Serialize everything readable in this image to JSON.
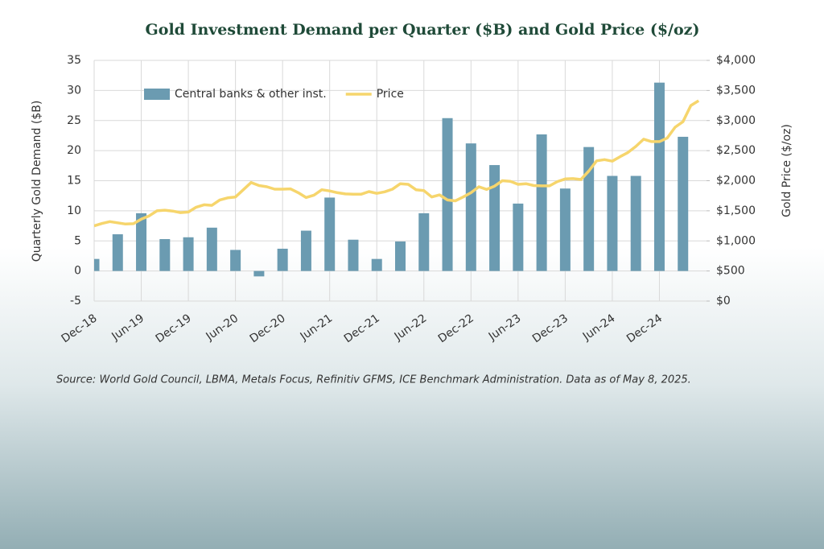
{
  "chart_data": {
    "type": "bar_line",
    "title": "Gold Investment Demand per Quarter ($B) and Gold Price ($/oz)",
    "ylabel": "Quarterly Gold Demand ($B)",
    "y2label": "Gold Price ($/oz)",
    "source": "Source: World Gold Council, LBMA, Metals Focus, Refinitiv GFMS, ICE Benchmark Administration.  Data as of May 8, 2025.",
    "categories": [
      "Dec-18",
      null,
      "Jun-19",
      null,
      "Dec-19",
      null,
      "Jun-20",
      null,
      "Dec-20",
      null,
      "Jun-21",
      null,
      "Dec-21",
      null,
      "Jun-22",
      null,
      "Dec-22",
      null,
      "Jun-23",
      null,
      "Dec-23",
      null,
      "Jun-24",
      null,
      "Dec-24",
      null
    ],
    "series": [
      {
        "name": "Central banks & other inst.",
        "color": "#6b9bb1",
        "values": [
          2.0,
          6.1,
          9.6,
          5.3,
          5.6,
          7.2,
          3.5,
          -0.9,
          3.7,
          6.7,
          12.2,
          5.2,
          2.0,
          4.9,
          9.6,
          25.4,
          21.2,
          17.6,
          11.2,
          22.7,
          13.7,
          20.6,
          15.8,
          15.8,
          31.3,
          22.3
        ]
      },
      {
        "name": "Price",
        "color": "#f6d56c",
        "axis": "y2",
        "x": [
          "Dec-18",
          "Jan-19",
          "Feb-19",
          "Mar-19",
          "Apr-19",
          "May-19",
          "Jun-19",
          "Jul-19",
          "Aug-19",
          "Sep-19",
          "Oct-19",
          "Nov-19",
          "Dec-19",
          "Jan-20",
          "Feb-20",
          "Mar-20",
          "Apr-20",
          "May-20",
          "Jun-20",
          "Jul-20",
          "Aug-20",
          "Sep-20",
          "Oct-20",
          "Nov-20",
          "Dec-20",
          "Jan-21",
          "Feb-21",
          "Mar-21",
          "Apr-21",
          "May-21",
          "Jun-21",
          "Jul-21",
          "Aug-21",
          "Sep-21",
          "Oct-21",
          "Nov-21",
          "Dec-21",
          "Jan-22",
          "Feb-22",
          "Mar-22",
          "Apr-22",
          "May-22",
          "Jun-22",
          "Jul-22",
          "Aug-22",
          "Sep-22",
          "Oct-22",
          "Nov-22",
          "Dec-22",
          "Jan-23",
          "Feb-23",
          "Mar-23",
          "Apr-23",
          "May-23",
          "Jun-23",
          "Jul-23",
          "Aug-23",
          "Sep-23",
          "Oct-23",
          "Nov-23",
          "Dec-23",
          "Jan-24",
          "Feb-24",
          "Mar-24",
          "Apr-24",
          "May-24",
          "Jun-24",
          "Jul-24",
          "Aug-24",
          "Sep-24",
          "Oct-24",
          "Nov-24",
          "Dec-24",
          "Jan-25",
          "Feb-25",
          "Mar-25",
          "Apr-25",
          "May-25"
        ],
        "values": [
          1250,
          1290,
          1320,
          1300,
          1280,
          1285,
          1360,
          1415,
          1500,
          1510,
          1495,
          1470,
          1480,
          1560,
          1600,
          1590,
          1680,
          1715,
          1730,
          1850,
          1970,
          1920,
          1900,
          1860,
          1860,
          1865,
          1800,
          1720,
          1760,
          1850,
          1830,
          1800,
          1780,
          1775,
          1775,
          1820,
          1790,
          1815,
          1860,
          1950,
          1940,
          1850,
          1835,
          1730,
          1765,
          1680,
          1665,
          1730,
          1800,
          1900,
          1855,
          1910,
          2000,
          1990,
          1940,
          1950,
          1920,
          1915,
          1915,
          1985,
          2030,
          2035,
          2020,
          2160,
          2330,
          2350,
          2325,
          2400,
          2470,
          2570,
          2690,
          2650,
          2650,
          2710,
          2890,
          2980,
          3250,
          3330
        ]
      }
    ],
    "ylim": [
      -5,
      35
    ],
    "yticks": [
      -5,
      0,
      5,
      10,
      15,
      20,
      25,
      30,
      35
    ],
    "y2lim": [
      0,
      4000
    ],
    "y2ticks": [
      {
        "value": 0,
        "label": "$0"
      },
      {
        "value": 500,
        "label": "$500"
      },
      {
        "value": 1000,
        "label": "$1,000"
      },
      {
        "value": 1500,
        "label": "$1,500"
      },
      {
        "value": 2000,
        "label": "$2,000"
      },
      {
        "value": 2500,
        "label": "$2,500"
      },
      {
        "value": 3000,
        "label": "$3,000"
      },
      {
        "value": 3500,
        "label": "$3,500"
      },
      {
        "value": 4000,
        "label": "$4,000"
      }
    ],
    "grid": true,
    "legend": "top-left"
  }
}
